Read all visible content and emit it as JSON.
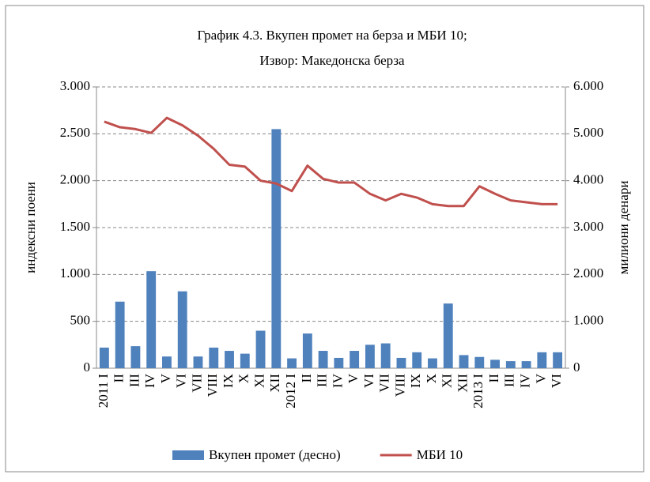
{
  "chart_data": {
    "type": "bar_line",
    "title": "График 4.3. Вкупен промет на берза и МБИ 10;",
    "subtitle": "Извор: Македонска берза",
    "y_label": "индексни поени",
    "y2_label": "милиони денари",
    "categories": [
      "2011 I",
      "II",
      "III",
      "IV",
      "V",
      "VI",
      "VII",
      "VIII",
      "IX",
      "X",
      "XI",
      "XII",
      "2012 I",
      "II",
      "III",
      "IV",
      "V",
      "VI",
      "VII",
      "VIII",
      "IX",
      "X",
      "XI",
      "XII",
      "2013 I",
      "II",
      "III",
      "IV",
      "V",
      "VI"
    ],
    "series": [
      {
        "name": "Вкупен промет (десно)",
        "type": "bar",
        "axis": "y2",
        "color": "#4f81bd",
        "values": [
          440,
          1420,
          470,
          2070,
          250,
          1640,
          250,
          440,
          370,
          310,
          800,
          5100,
          210,
          740,
          370,
          220,
          370,
          500,
          530,
          220,
          340,
          210,
          1380,
          280,
          240,
          180,
          150,
          150,
          340,
          340
        ]
      },
      {
        "name": "МБИ 10",
        "type": "line",
        "axis": "y",
        "color": "#c0504d",
        "values": [
          2630,
          2570,
          2550,
          2510,
          2670,
          2590,
          2480,
          2340,
          2170,
          2150,
          2000,
          1970,
          1890,
          2160,
          2020,
          1980,
          1980,
          1860,
          1790,
          1860,
          1820,
          1750,
          1730,
          1730,
          1940,
          1860,
          1790,
          1770,
          1750,
          1750
        ]
      }
    ],
    "ylim": [
      0,
      3000
    ],
    "yticks": [
      0,
      500,
      {
        "value": 1000,
        "label": "1.000"
      },
      {
        "value": 1500,
        "label": "1.500"
      },
      {
        "value": 2000,
        "label": "2.000"
      },
      {
        "value": 2500,
        "label": "2.500"
      },
      {
        "value": 3000,
        "label": "3.000"
      }
    ],
    "y2lim": [
      0,
      6000
    ],
    "y2ticks": [
      0,
      {
        "value": 1000,
        "label": "1.000"
      },
      {
        "value": 2000,
        "label": "2.000"
      },
      {
        "value": 3000,
        "label": "3.000"
      },
      {
        "value": 4000,
        "label": "4.000"
      },
      {
        "value": 5000,
        "label": "5.000"
      },
      {
        "value": 6000,
        "label": "6.000"
      }
    ],
    "grid": true
  }
}
